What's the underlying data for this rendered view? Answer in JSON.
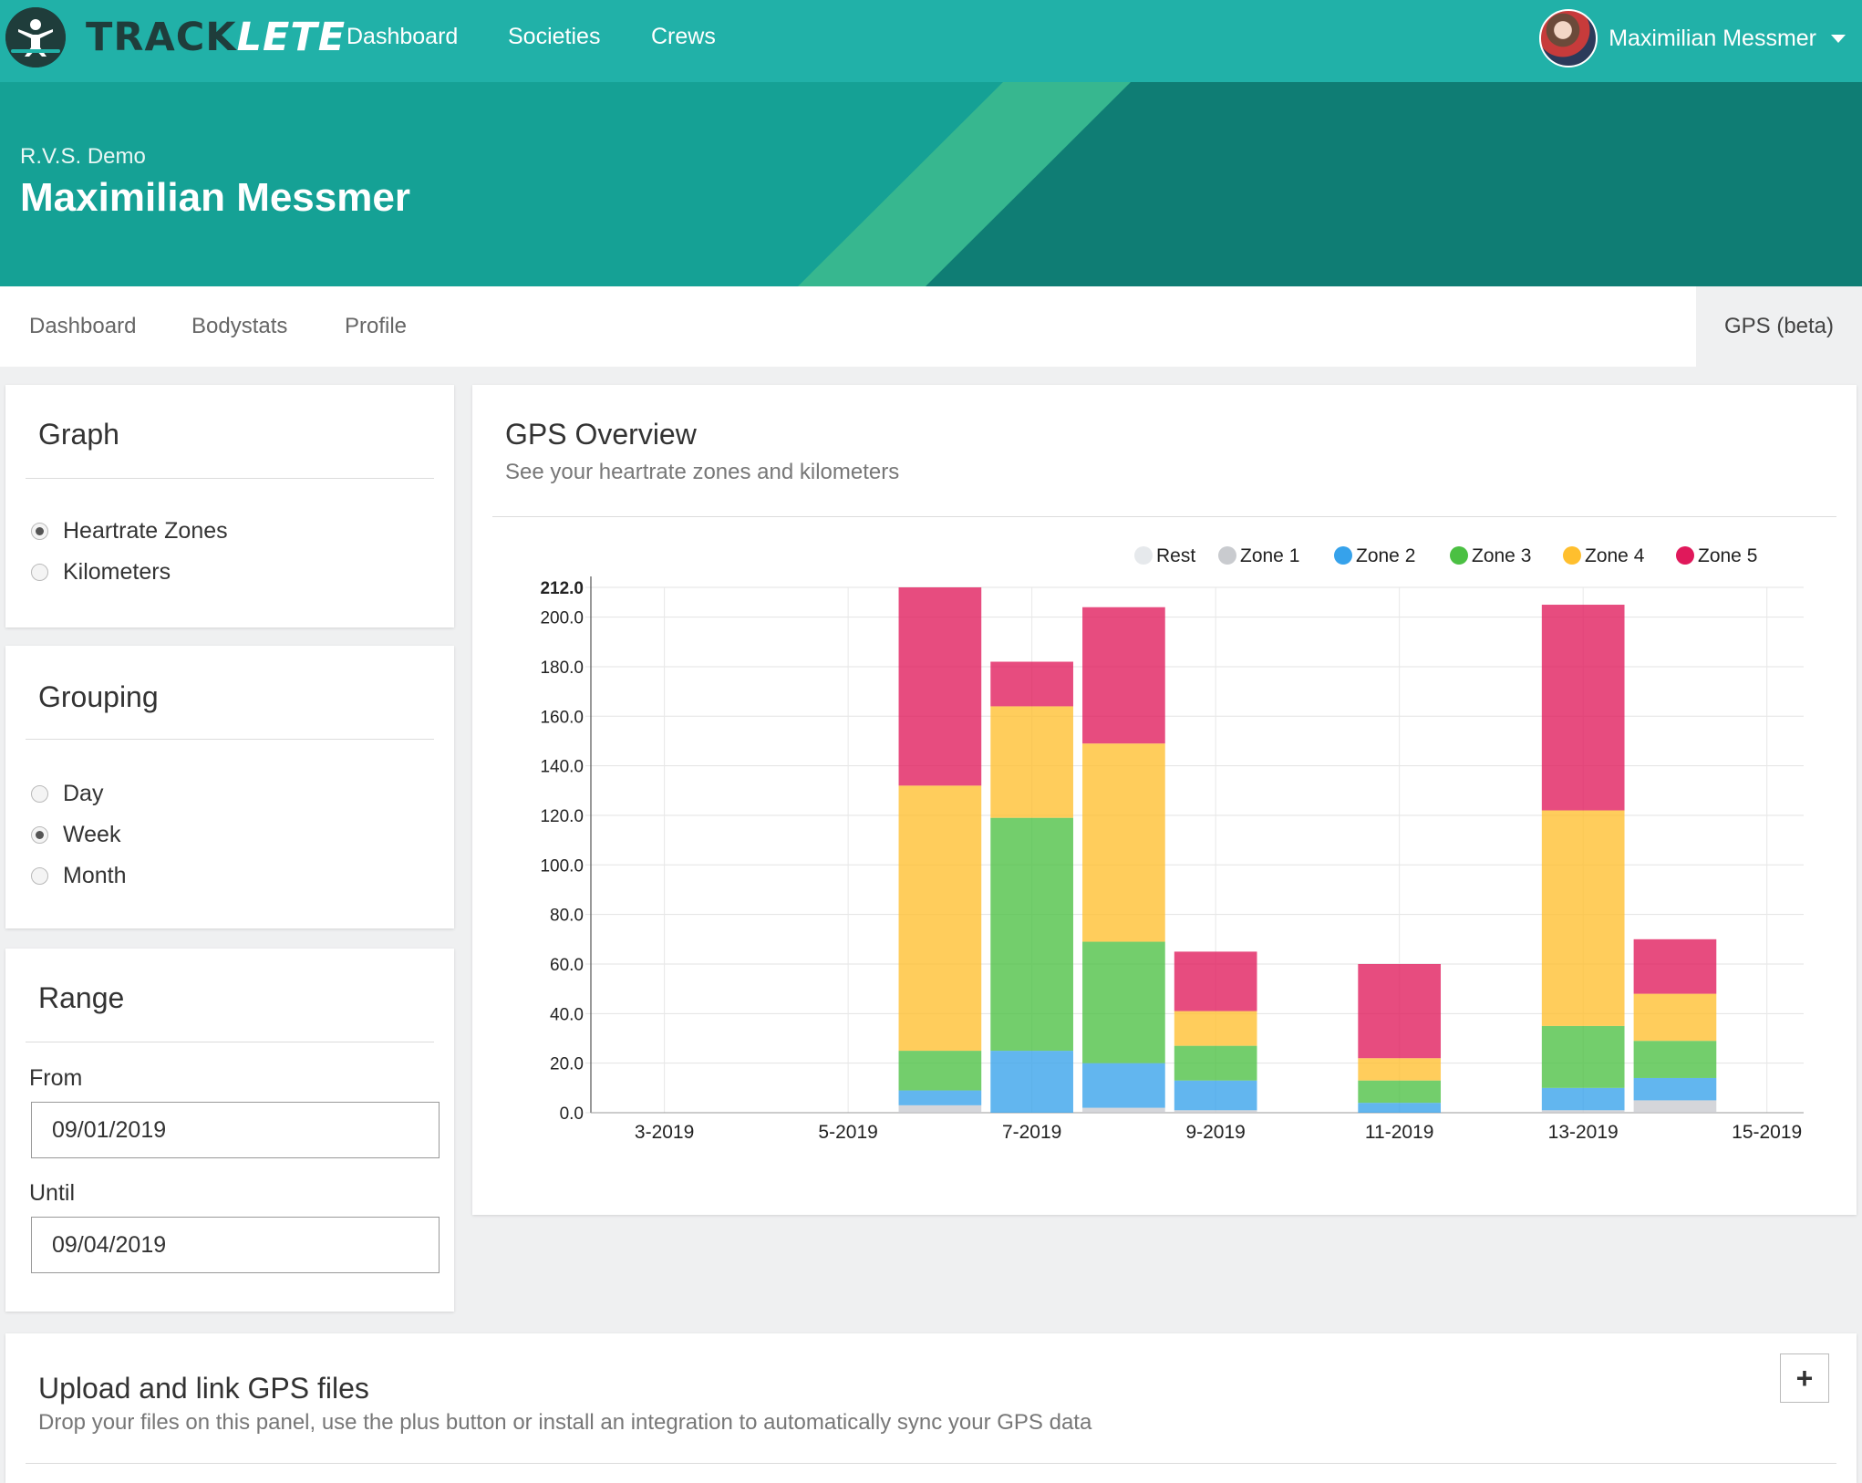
{
  "app": {
    "logo_part1": "TRACK",
    "logo_part2": "LETE",
    "nav": [
      {
        "label": "Dashboard"
      },
      {
        "label": "Societies"
      },
      {
        "label": "Crews"
      }
    ],
    "user_name": "Maximilian Messmer"
  },
  "hero": {
    "subtitle": "R.V.S. Demo",
    "title": "Maximilian Messmer"
  },
  "tabs": [
    {
      "label": "Dashboard"
    },
    {
      "label": "Bodystats"
    },
    {
      "label": "Profile"
    }
  ],
  "active_tab": "GPS (beta)",
  "graph_panel": {
    "title": "Graph",
    "options": [
      {
        "label": "Heartrate Zones",
        "checked": true
      },
      {
        "label": "Kilometers",
        "checked": false
      }
    ]
  },
  "grouping_panel": {
    "title": "Grouping",
    "options": [
      {
        "label": "Day",
        "checked": false
      },
      {
        "label": "Week",
        "checked": true
      },
      {
        "label": "Month",
        "checked": false
      }
    ]
  },
  "range_panel": {
    "title": "Range",
    "from_label": "From",
    "from_value": "09/01/2019",
    "until_label": "Until",
    "until_value": "09/04/2019"
  },
  "gps_overview": {
    "title": "GPS Overview",
    "subtitle": "See your heartrate zones and kilometers"
  },
  "upload": {
    "title": "Upload and link GPS files",
    "subtitle": "Drop your files on this panel, use the plus button or install an integration to automatically sync your GPS data",
    "plus_label": "+"
  },
  "colors": {
    "teal": "#21b1a8",
    "rest": "#e6e9ec",
    "zone1": "#c9cbcf",
    "zone2": "#36a2eb",
    "zone3": "#4bc043",
    "zone4": "#ffbf2e",
    "zone5": "#e0195b"
  },
  "chart_data": {
    "type": "bar",
    "stacked": true,
    "x_min": 2.2,
    "x_max": 15.4,
    "ylim": [
      0,
      212
    ],
    "y_ticks": [
      "0.0",
      "20.0",
      "40.0",
      "60.0",
      "80.0",
      "100.0",
      "120.0",
      "140.0",
      "160.0",
      "180.0",
      "200.0",
      "212.0"
    ],
    "x_ticks": [
      "3-2019",
      "5-2019",
      "7-2019",
      "9-2019",
      "11-2019",
      "13-2019",
      "15-2019"
    ],
    "x_tick_positions": [
      3,
      5,
      7,
      9,
      11,
      13,
      15
    ],
    "legend_position": "top-right",
    "grid": true,
    "x": [
      6.0,
      7.0,
      8.0,
      9.0,
      11.0,
      13.0,
      14.0
    ],
    "series": [
      {
        "name": "Rest",
        "color": "#e6e9ec",
        "values": [
          0,
          0,
          0,
          0,
          0,
          0,
          0
        ]
      },
      {
        "name": "Zone 1",
        "color": "#c9cbcf",
        "values": [
          3,
          0,
          2,
          1,
          0,
          1,
          5
        ]
      },
      {
        "name": "Zone 2",
        "color": "#36a2eb",
        "values": [
          6,
          25,
          18,
          12,
          4,
          9,
          9
        ]
      },
      {
        "name": "Zone 3",
        "color": "#4bc043",
        "values": [
          16,
          94,
          49,
          14,
          9,
          25,
          15
        ]
      },
      {
        "name": "Zone 4",
        "color": "#ffbf2e",
        "values": [
          107,
          45,
          80,
          14,
          9,
          87,
          19
        ]
      },
      {
        "name": "Zone 5",
        "color": "#e0195b",
        "values": [
          80,
          18,
          55,
          24,
          38,
          83,
          22
        ]
      }
    ]
  }
}
